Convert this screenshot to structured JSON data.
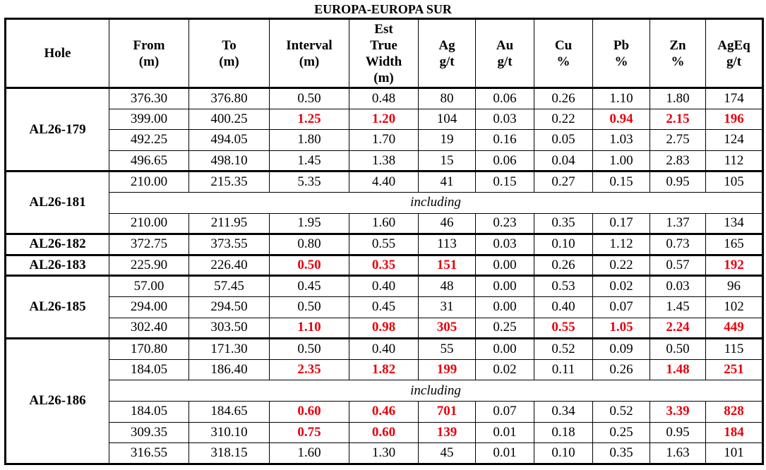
{
  "table": {
    "title": "EUROPA-EUROPA SUR",
    "header": [
      [
        "Hole"
      ],
      [
        "From",
        "(m)"
      ],
      [
        "To",
        "(m)"
      ],
      [
        "Interval",
        "(m)"
      ],
      [
        "Est",
        "True",
        "Width",
        "(m)"
      ],
      [
        "Ag",
        "g/t"
      ],
      [
        "Au",
        "g/t"
      ],
      [
        "Cu",
        "%"
      ],
      [
        "Pb",
        "%"
      ],
      [
        "Zn",
        "%"
      ],
      [
        "AgEq",
        "g/t"
      ]
    ],
    "groups": [
      {
        "hole": "AL26-179",
        "rows": [
          {
            "cells": [
              "376.30",
              "376.80",
              "0.50",
              "0.48",
              "80",
              "0.06",
              "0.26",
              "1.10",
              "1.80",
              "174"
            ]
          },
          {
            "cells": [
              "399.00",
              "400.25",
              {
                "text": "1.25",
                "highlight": true
              },
              {
                "text": "1.20",
                "highlight": true
              },
              "104",
              "0.03",
              "0.22",
              {
                "text": "0.94",
                "highlight": true
              },
              {
                "text": "2.15",
                "highlight": true
              },
              {
                "text": "196",
                "highlight": true
              }
            ]
          },
          {
            "cells": [
              "492.25",
              "494.05",
              "1.80",
              "1.70",
              "19",
              "0.16",
              "0.05",
              "1.03",
              "2.75",
              "124"
            ]
          },
          {
            "cells": [
              "496.65",
              "498.10",
              "1.45",
              "1.38",
              "15",
              "0.06",
              "0.04",
              "1.00",
              "2.83",
              "112"
            ]
          }
        ]
      },
      {
        "hole": "AL26-181",
        "rows": [
          {
            "cells": [
              "210.00",
              "215.35",
              "5.35",
              "4.40",
              "41",
              "0.15",
              "0.27",
              "0.15",
              "0.95",
              "105"
            ]
          },
          {
            "note": "including"
          },
          {
            "cells": [
              "210.00",
              "211.95",
              "1.95",
              "1.60",
              "46",
              "0.23",
              "0.35",
              "0.17",
              "1.37",
              "134"
            ]
          }
        ]
      },
      {
        "hole": "AL26-182",
        "rows": [
          {
            "cells": [
              "372.75",
              "373.55",
              "0.80",
              "0.55",
              "113",
              "0.03",
              "0.10",
              "1.12",
              "0.73",
              "165"
            ]
          }
        ]
      },
      {
        "hole": "AL26-183",
        "rows": [
          {
            "cells": [
              "225.90",
              "226.40",
              {
                "text": "0.50",
                "highlight": true
              },
              {
                "text": "0.35",
                "highlight": true
              },
              {
                "text": "151",
                "highlight": true
              },
              "0.00",
              "0.26",
              "0.22",
              "0.57",
              {
                "text": "192",
                "highlight": true
              }
            ]
          }
        ]
      },
      {
        "hole": "AL26-185",
        "rows": [
          {
            "cells": [
              "57.00",
              "57.45",
              "0.45",
              "0.40",
              "48",
              "0.00",
              "0.53",
              "0.02",
              "0.03",
              "96"
            ]
          },
          {
            "cells": [
              "294.00",
              "294.50",
              "0.50",
              "0.45",
              "31",
              "0.00",
              "0.40",
              "0.07",
              "1.45",
              "102"
            ]
          },
          {
            "cells": [
              "302.40",
              "303.50",
              {
                "text": "1.10",
                "highlight": true
              },
              {
                "text": "0.98",
                "highlight": true
              },
              {
                "text": "305",
                "highlight": true
              },
              "0.25",
              {
                "text": "0.55",
                "highlight": true
              },
              {
                "text": "1.05",
                "highlight": true
              },
              {
                "text": "2.24",
                "highlight": true
              },
              {
                "text": "449",
                "highlight": true
              }
            ]
          }
        ]
      },
      {
        "hole": "AL26-186",
        "rows": [
          {
            "cells": [
              "170.80",
              "171.30",
              "0.50",
              "0.40",
              "55",
              "0.00",
              "0.52",
              "0.09",
              "0.50",
              "115"
            ]
          },
          {
            "cells": [
              "184.05",
              "186.40",
              {
                "text": "2.35",
                "highlight": true
              },
              {
                "text": "1.82",
                "highlight": true
              },
              {
                "text": "199",
                "highlight": true
              },
              "0.02",
              "0.11",
              "0.26",
              {
                "text": "1.48",
                "highlight": true
              },
              {
                "text": "251",
                "highlight": true
              }
            ]
          },
          {
            "note": "including"
          },
          {
            "cells": [
              "184.05",
              "184.65",
              {
                "text": "0.60",
                "highlight": true
              },
              {
                "text": "0.46",
                "highlight": true
              },
              {
                "text": "701",
                "highlight": true
              },
              "0.07",
              "0.34",
              "0.52",
              {
                "text": "3.39",
                "highlight": true
              },
              {
                "text": "828",
                "highlight": true
              }
            ]
          },
          {
            "cells": [
              "309.35",
              "310.10",
              {
                "text": "0.75",
                "highlight": true
              },
              {
                "text": "0.60",
                "highlight": true
              },
              {
                "text": "139",
                "highlight": true
              },
              "0.01",
              "0.18",
              "0.25",
              "0.95",
              {
                "text": "184",
                "highlight": true
              }
            ]
          },
          {
            "cells": [
              "316.55",
              "318.15",
              "1.60",
              "1.30",
              "45",
              "0.01",
              "0.10",
              "0.35",
              "1.63",
              "101"
            ]
          }
        ]
      }
    ]
  }
}
